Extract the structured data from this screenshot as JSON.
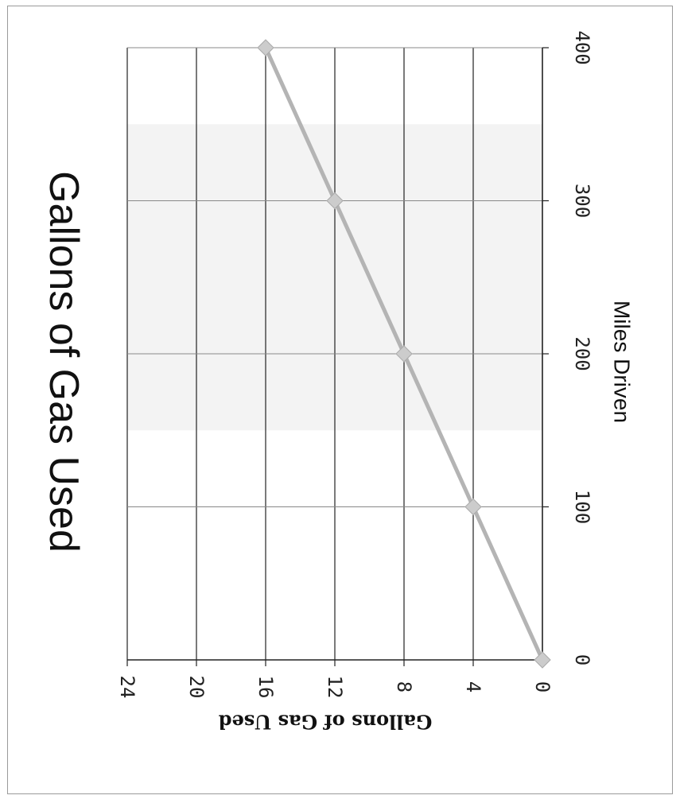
{
  "chart_data": {
    "type": "line",
    "title": "Gallons of Gas Used",
    "xlabel": "Miles Driven",
    "ylabel": "Gallons of Gas Used",
    "x": [
      0,
      100,
      200,
      300,
      400
    ],
    "series": [
      {
        "values": [
          0,
          4,
          8,
          12,
          16
        ]
      }
    ],
    "x_ticks": [
      "0",
      "100",
      "200",
      "300",
      "400"
    ],
    "y_ticks": [
      "0",
      "4",
      "8",
      "12",
      "16",
      "20",
      "24"
    ],
    "xlim": [
      0,
      400
    ],
    "ylim": [
      0,
      24
    ],
    "grid": true,
    "orientation": "rotated 90 degrees clockwise",
    "line_color": "#b4b4b4",
    "marker_color": "#cccccc"
  }
}
